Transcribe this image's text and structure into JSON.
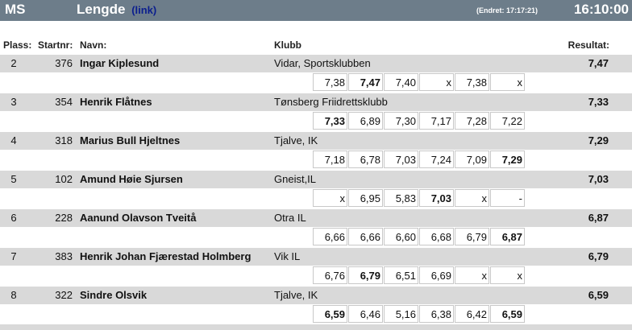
{
  "header": {
    "class_code": "MS",
    "event_title": "Lengde",
    "link_text": "(link)",
    "changed": "(Endret: 17:17:21)",
    "clock": "16:10:00"
  },
  "columns": {
    "place": "Plass:",
    "bib": "Startnr:",
    "name": "Navn:",
    "club": "Klubb",
    "result": "Resultat:"
  },
  "athletes": [
    {
      "place": "2",
      "bib": "376",
      "name": "Ingar Kiplesund",
      "club": "Vidar, Sportsklubben",
      "result": "7,47",
      "attempts": [
        "7,38",
        "7,47",
        "7,40",
        "x",
        "7,38",
        "x"
      ],
      "best_index": [
        1
      ]
    },
    {
      "place": "3",
      "bib": "354",
      "name": "Henrik Flåtnes",
      "club": "Tønsberg Friidrettsklubb",
      "result": "7,33",
      "attempts": [
        "7,33",
        "6,89",
        "7,30",
        "7,17",
        "7,28",
        "7,22"
      ],
      "best_index": [
        0
      ]
    },
    {
      "place": "4",
      "bib": "318",
      "name": "Marius Bull Hjeltnes",
      "club": "Tjalve, IK",
      "result": "7,29",
      "attempts": [
        "7,18",
        "6,78",
        "7,03",
        "7,24",
        "7,09",
        "7,29"
      ],
      "best_index": [
        5
      ]
    },
    {
      "place": "5",
      "bib": "102",
      "name": "Amund Høie Sjursen",
      "club": "Gneist,IL",
      "result": "7,03",
      "attempts": [
        "x",
        "6,95",
        "5,83",
        "7,03",
        "x",
        "-"
      ],
      "best_index": [
        3
      ]
    },
    {
      "place": "6",
      "bib": "228",
      "name": "Aanund Olavson Tveitå",
      "club": "Otra IL",
      "result": "6,87",
      "attempts": [
        "6,66",
        "6,66",
        "6,60",
        "6,68",
        "6,79",
        "6,87"
      ],
      "best_index": [
        5
      ]
    },
    {
      "place": "7",
      "bib": "383",
      "name": "Henrik Johan Fjærestad Holmberg",
      "club": "Vik IL",
      "result": "6,79",
      "attempts": [
        "6,76",
        "6,79",
        "6,51",
        "6,69",
        "x",
        "x"
      ],
      "best_index": [
        1
      ]
    },
    {
      "place": "8",
      "bib": "322",
      "name": "Sindre Olsvik",
      "club": "Tjalve, IK",
      "result": "6,59",
      "attempts": [
        "6,59",
        "6,46",
        "5,16",
        "6,38",
        "6,42",
        "6,59"
      ],
      "best_index": [
        0,
        5
      ]
    }
  ]
}
